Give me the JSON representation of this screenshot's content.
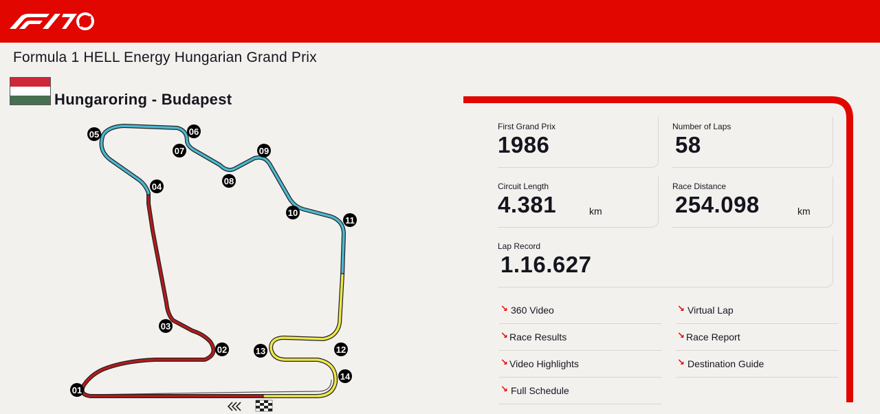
{
  "header": {
    "brand": "F1 70",
    "brand_color": "#e10600",
    "icon": "f1-70-logo"
  },
  "race": {
    "title": "Formula 1 HELL Energy Hungarian Grand Prix",
    "flag": {
      "icon": "hungary-flag",
      "colors": [
        "#ce2939",
        "#ffffff",
        "#477050"
      ]
    },
    "circuit": "Hungaroring  - Budapest"
  },
  "track": {
    "corners": [
      "01",
      "02",
      "03",
      "04",
      "05",
      "06",
      "07",
      "08",
      "09",
      "10",
      "11",
      "12",
      "13",
      "14"
    ],
    "sector_colors": {
      "sector1": "#b61a1a",
      "sector2": "#4bb8d0",
      "sector3": "#efe64a"
    }
  },
  "stats": {
    "first_gp": {
      "label": "First Grand Prix",
      "value": "1986"
    },
    "laps": {
      "label": "Number of Laps",
      "value": "58"
    },
    "length": {
      "label": "Circuit Length",
      "value": "4.381",
      "unit": "km"
    },
    "distance": {
      "label": "Race Distance",
      "value": "254.098",
      "unit": "km"
    },
    "record": {
      "label": "Lap Record",
      "value": "1.16.627"
    }
  },
  "links": [
    {
      "label": "360 Video",
      "icon": "arrow-down-right-icon"
    },
    {
      "label": "Virtual Lap",
      "icon": "arrow-down-right-icon"
    },
    {
      "label": "Race Results",
      "icon": "arrow-down-right-icon"
    },
    {
      "label": "Race Report",
      "icon": "arrow-down-right-icon"
    },
    {
      "label": "Video Highlights",
      "icon": "arrow-down-right-icon"
    },
    {
      "label": "Destination Guide",
      "icon": "arrow-down-right-icon"
    },
    {
      "label": "Full Schedule",
      "icon": "arrow-down-right-icon"
    }
  ]
}
